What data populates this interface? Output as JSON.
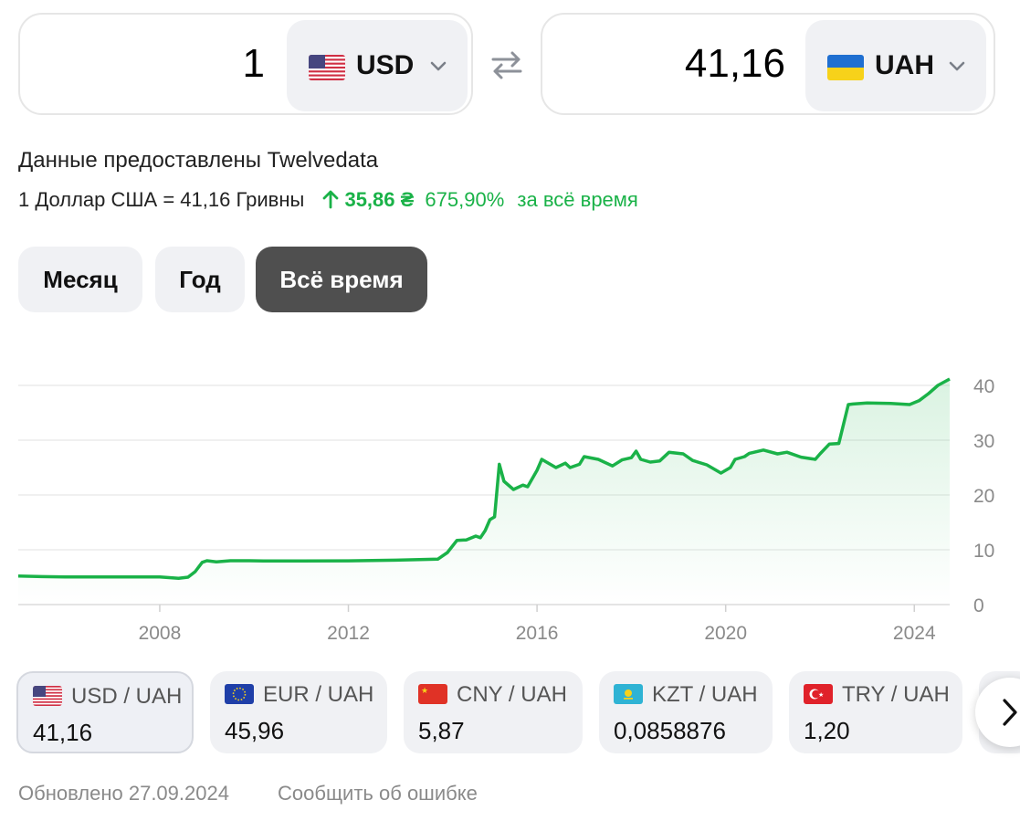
{
  "converter": {
    "from": {
      "amount": "1",
      "code": "USD",
      "flag": "us-flag-icon"
    },
    "to": {
      "amount": "41,16",
      "code": "UAH",
      "flag": "ua-flag-icon"
    },
    "swap_icon": "swap-arrows-icon"
  },
  "provider_text": "Данные предоставлены Twelvedata",
  "rate": {
    "text": "1 Доллар США = 41,16 Гривны",
    "change": "35,86 ₴",
    "percent": "675,90%",
    "period": "за всё время",
    "change_color": "#1ab248"
  },
  "periods": [
    {
      "label": "Месяц",
      "active": false
    },
    {
      "label": "Год",
      "active": false
    },
    {
      "label": "Всё время",
      "active": true
    }
  ],
  "chart_data": {
    "type": "area",
    "line_color": "#1ab248",
    "x_ticks": [
      "2008",
      "2012",
      "2016",
      "2020",
      "2024"
    ],
    "y_ticks": [
      "0",
      "10",
      "20",
      "30",
      "40"
    ],
    "ylim": [
      0,
      42
    ],
    "xlim": [
      2005.0,
      2024.75
    ],
    "grid": true,
    "x": [
      2005.0,
      2005.5,
      2006.0,
      2007.0,
      2008.0,
      2008.4,
      2008.6,
      2008.75,
      2008.9,
      2009.0,
      2009.2,
      2009.5,
      2009.7,
      2009.9,
      2010.2,
      2011.0,
      2012.0,
      2013.0,
      2013.9,
      2014.1,
      2014.3,
      2014.5,
      2014.7,
      2014.8,
      2014.9,
      2015.0,
      2015.1,
      2015.2,
      2015.3,
      2015.5,
      2015.7,
      2015.8,
      2016.0,
      2016.1,
      2016.4,
      2016.6,
      2016.7,
      2016.9,
      2017.0,
      2017.3,
      2017.6,
      2017.8,
      2018.0,
      2018.1,
      2018.2,
      2018.4,
      2018.6,
      2018.8,
      2019.1,
      2019.3,
      2019.6,
      2019.9,
      2020.1,
      2020.2,
      2020.4,
      2020.5,
      2020.8,
      2021.1,
      2021.3,
      2021.6,
      2021.9,
      2022.0,
      2022.2,
      2022.4,
      2022.6,
      2022.7,
      2023.0,
      2023.5,
      2023.9,
      2024.1,
      2024.3,
      2024.5,
      2024.75
    ],
    "y": [
      5.2,
      5.1,
      5.05,
      5.05,
      5.05,
      4.8,
      5.0,
      6.0,
      7.7,
      8.0,
      7.8,
      8.0,
      8.0,
      8.0,
      7.95,
      7.95,
      7.99,
      8.1,
      8.3,
      9.5,
      11.7,
      11.8,
      12.5,
      12.2,
      13.5,
      15.5,
      16.0,
      25.6,
      22.5,
      21.0,
      21.8,
      21.5,
      24.5,
      26.5,
      25.0,
      25.8,
      25.0,
      25.6,
      27.0,
      26.5,
      25.3,
      26.4,
      26.8,
      28.0,
      26.5,
      26.0,
      26.2,
      27.8,
      27.5,
      26.3,
      25.5,
      24.0,
      25.0,
      26.5,
      27.0,
      27.6,
      28.2,
      27.5,
      27.8,
      26.9,
      26.5,
      27.5,
      29.3,
      29.4,
      36.5,
      36.6,
      36.8,
      36.7,
      36.5,
      37.2,
      38.5,
      40.0,
      41.16
    ]
  },
  "pairs": [
    {
      "name": "USD / UAH",
      "value": "41,16",
      "flag": "us-flag-icon",
      "active": true
    },
    {
      "name": "EUR / UAH",
      "value": "45,96",
      "flag": "eu-flag-icon",
      "active": false
    },
    {
      "name": "CNY / UAH",
      "value": "5,87",
      "flag": "cn-flag-icon",
      "active": false
    },
    {
      "name": "KZT / UAH",
      "value": "0,0858876",
      "flag": "kz-flag-icon",
      "active": false
    },
    {
      "name": "TRY / UAH",
      "value": "1,20",
      "flag": "tr-flag-icon",
      "active": false
    }
  ],
  "next_icon": "chevron-right-icon",
  "footer": {
    "updated": "Обновлено 27.09.2024",
    "report": "Сообщить об ошибке"
  }
}
